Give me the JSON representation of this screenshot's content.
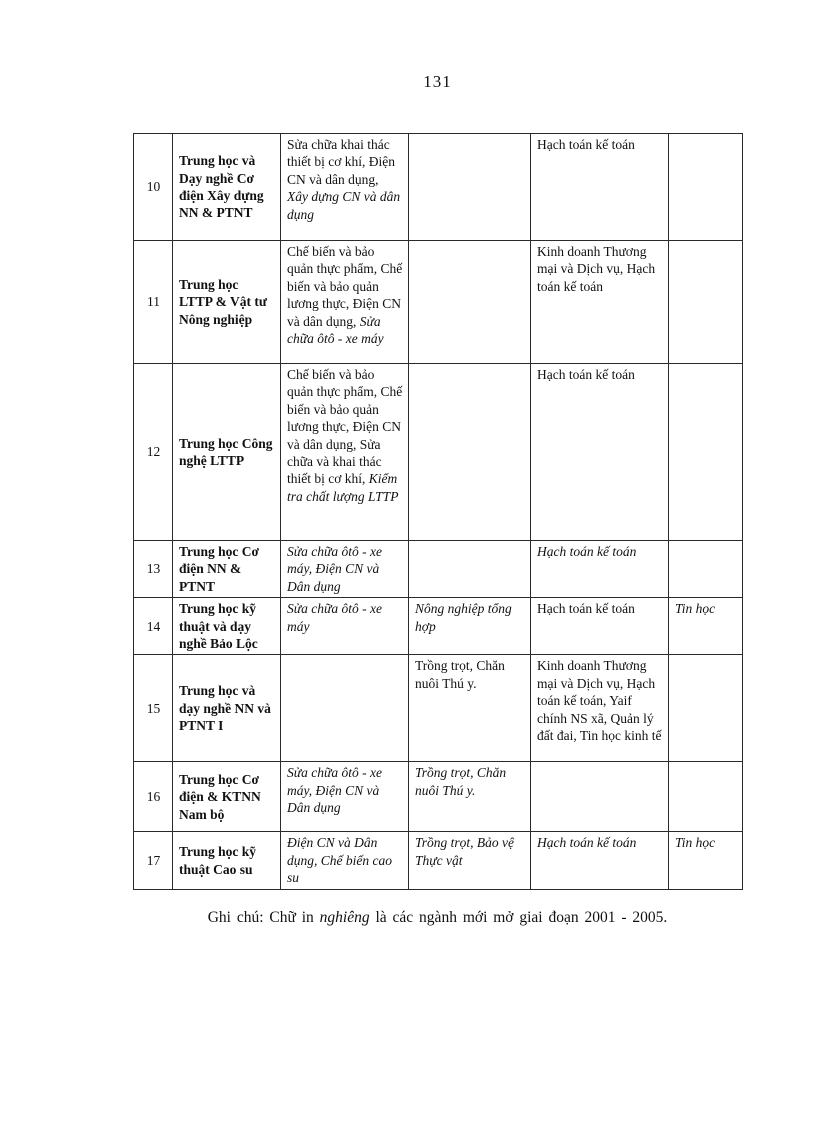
{
  "page": {
    "number": "131"
  },
  "table": {
    "rows": [
      {
        "no": "10",
        "name": "Trung học và Dạy nghề Cơ điện Xây dựng NN & PTNT",
        "cells": [
          [
            {
              "t": "Sửa chữa khai thác thiết bị cơ khí,  Điện CN và dân dụng,",
              "i": false,
              "br": true
            },
            {
              "t": "Xây dựng CN và dân dụng",
              "i": true
            }
          ],
          [],
          [
            {
              "t": "Hạch toán kế toán",
              "i": false
            }
          ],
          []
        ]
      },
      {
        "no": "11",
        "name": "Trung học LTTP & Vật tư Nông nghiệp",
        "cells": [
          [
            {
              "t": "Chế biến và bảo quản thực phẩm, Chế biến và bảo quản lương thực, Điện CN và dân dụng,",
              "i": false
            },
            {
              "t": "Sửa chữa ôtô - xe máy",
              "i": true
            }
          ],
          [],
          [
            {
              "t": "Kinh doanh Thương mại và Dịch vụ,  Hạch toán kế toán",
              "i": false
            }
          ],
          []
        ]
      },
      {
        "no": "12",
        "name": "Trung học Công nghệ LTTP",
        "cells": [
          [
            {
              "t": "Chế biến và bảo quản thực phẩm, Chế biến và bảo quản lương thực, Điện CN và dân dụng,  Sửa chữa và khai thác thiết bị cơ khí,",
              "i": false
            },
            {
              "t": "Kiểm tra chất lượng LTTP",
              "i": true
            }
          ],
          [],
          [
            {
              "t": "Hạch toán kế toán",
              "i": false
            }
          ],
          []
        ]
      },
      {
        "no": "13",
        "name": "Trung học Cơ điện NN & PTNT",
        "cells": [
          [
            {
              "t": "Sửa chữa ôtô - xe máy, Điện CN và Dân dụng",
              "i": true
            }
          ],
          [],
          [
            {
              "t": "Hạch toán kế toán",
              "i": true
            }
          ],
          []
        ]
      },
      {
        "no": "14",
        "name": "Trung học kỹ thuật  và dạy nghề Bảo Lộc",
        "cells": [
          [
            {
              "t": "Sửa chữa ôtô - xe máy",
              "i": true
            }
          ],
          [
            {
              "t": "Nông nghiệp tổng hợp",
              "i": true
            }
          ],
          [
            {
              "t": "Hạch toán kế toán",
              "i": false
            }
          ],
          [
            {
              "t": "Tin học",
              "i": true
            }
          ]
        ]
      },
      {
        "no": "15",
        "name": "Trung học và dạy nghề NN và PTNT I",
        "cells": [
          [],
          [
            {
              "t": "Trồng trọt,  Chăn nuôi  Thú  y.",
              "i": false
            }
          ],
          [
            {
              "t": "Kinh doanh Thương mại và Dịch vụ,  Hạch toán kế toán,  Yaif chính NS xã, Quản lý đất đai, Tin học kinh tế",
              "i": false
            }
          ],
          []
        ]
      },
      {
        "no": "16",
        "name": "Trung học Cơ điện & KTNN Nam bộ",
        "cells": [
          [
            {
              "t": "Sửa chữa ôtô - xe máy, Điện CN và Dân dụng",
              "i": true
            }
          ],
          [
            {
              "t": "Trồng trọt, Chăn nuôi Thú y.",
              "i": true
            }
          ],
          [],
          []
        ]
      },
      {
        "no": "17",
        "name": "Trung học kỹ thuật  Cao su",
        "cells": [
          [
            {
              "t": "Điện CN và Dân dụng, Chế biến cao su",
              "i": true
            }
          ],
          [
            {
              "t": "Trồng trọt, Bảo vệ Thực vật",
              "i": true
            }
          ],
          [
            {
              "t": "Hạch toán kế toán",
              "i": true
            }
          ],
          [
            {
              "t": "Tin học",
              "i": true
            }
          ]
        ]
      }
    ]
  },
  "note": {
    "prefix": "Ghi chú: Chữ in ",
    "italic_word": "nghiêng",
    "suffix": " là  các ngành mới mở giai  đoạn 2001  - 2005."
  }
}
